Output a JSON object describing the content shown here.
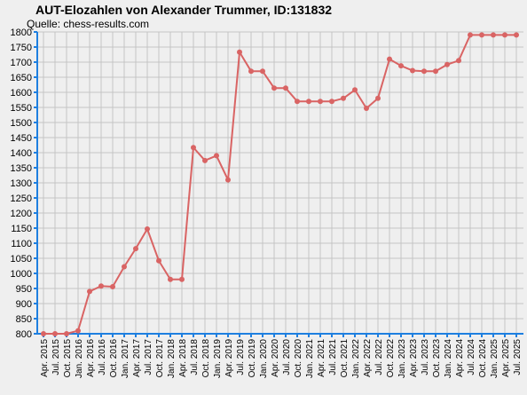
{
  "chart_data": {
    "type": "line",
    "title": "AUT-Elozahlen von Alexander Trummer, ID:131832",
    "subtitle": "Quelle: chess-results.com",
    "categories": [
      "Apr. 2015",
      "Jul. 2015",
      "Oct. 2015",
      "Jan. 2016",
      "Apr. 2016",
      "Jul. 2016",
      "Oct. 2016",
      "Jan. 2017",
      "Apr. 2017",
      "Jul. 2017",
      "Oct. 2017",
      "Jan. 2018",
      "Apr. 2018",
      "Jul. 2018",
      "Oct. 2018",
      "Jan. 2019",
      "Apr. 2019",
      "Jul. 2019",
      "Oct. 2019",
      "Jan. 2020",
      "Apr. 2020",
      "Jul. 2020",
      "Oct. 2020",
      "Jan. 2021",
      "Apr. 2021",
      "Jul. 2021",
      "Oct. 2021",
      "Jan. 2022",
      "Apr. 2022",
      "Jul. 2022",
      "Oct. 2022",
      "Jan. 2023",
      "Apr. 2023",
      "Jul. 2023",
      "Oct. 2023",
      "Jan. 2024",
      "Apr. 2024",
      "Jul. 2024",
      "Oct. 2024",
      "Jan. 2025",
      "Apr. 2025",
      "Jul. 2025"
    ],
    "values": [
      800,
      800,
      800,
      810,
      940,
      958,
      956,
      1022,
      1082,
      1147,
      1042,
      980,
      980,
      1417,
      1374,
      1390,
      1310,
      1733,
      1670,
      1670,
      1614,
      1614,
      1570,
      1570,
      1570,
      1570,
      1580,
      1608,
      1547,
      1580,
      1710,
      1688,
      1672,
      1670,
      1670,
      1692,
      1705,
      1790,
      1790,
      1790,
      1790,
      1790
    ],
    "color": "#d96464",
    "axis_color": "#1e7fe0",
    "ylim": [
      800,
      1800
    ],
    "yticks": [
      800,
      850,
      900,
      950,
      1000,
      1050,
      1100,
      1150,
      1200,
      1250,
      1300,
      1350,
      1400,
      1450,
      1500,
      1550,
      1600,
      1650,
      1700,
      1750,
      1800
    ],
    "grid": true
  }
}
